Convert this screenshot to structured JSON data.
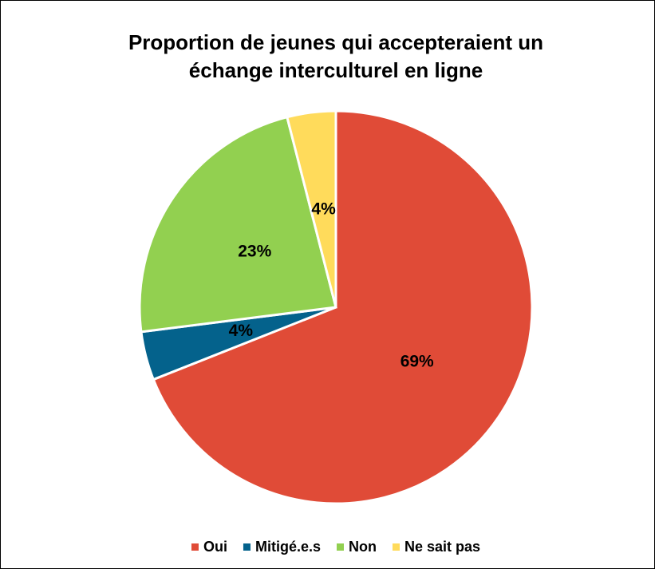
{
  "chart_data": {
    "type": "pie",
    "title": [
      "Proportion de jeunes qui accepteraient un",
      "échange interculturel en ligne"
    ],
    "categories": [
      "Oui",
      "Mitigé.e.s",
      "Non",
      "Ne sait pas"
    ],
    "values": [
      69,
      4,
      23,
      4
    ],
    "value_labels": [
      "69%",
      "4%",
      "23%",
      "4%"
    ],
    "colors": [
      "#e04b37",
      "#04628c",
      "#92d050",
      "#ffdb5b"
    ],
    "legend": "bottom"
  }
}
